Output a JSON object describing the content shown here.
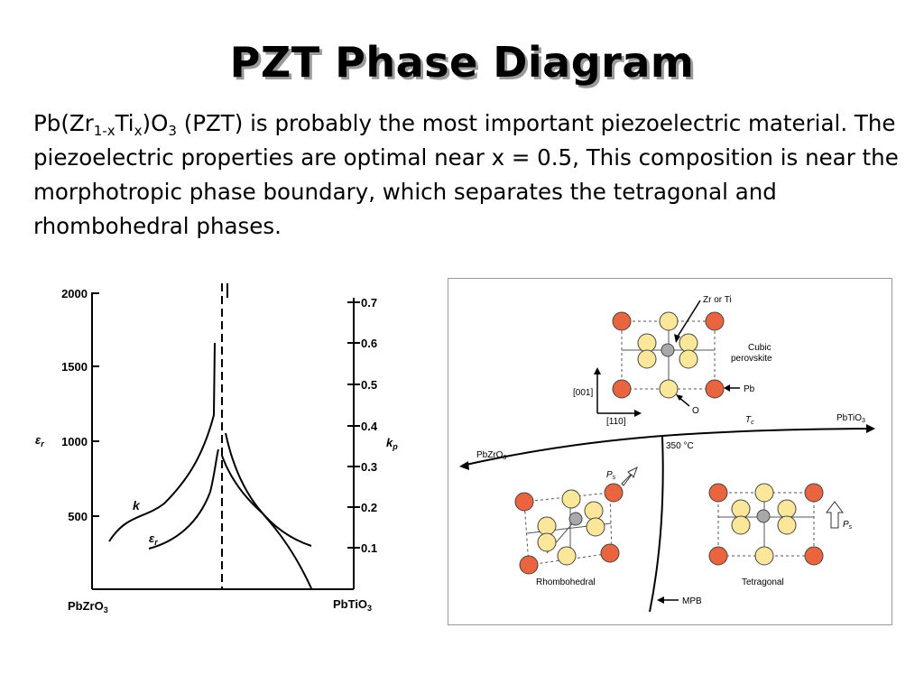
{
  "slide": {
    "title": "PZT Phase Diagram",
    "para_parts": {
      "p1": "Pb(Zr",
      "sub1": "1-x",
      "p2": "Ti",
      "sub2": "x",
      "p3": ")O",
      "sub3": "3",
      "p4": " (PZT) is probably the most important piezoelectric material.  The piezoelectric properties are optimal near x = 0.5, This composition is near the morphotropic phase boundary, which separates the tetragonal and rhombohedral phases."
    }
  },
  "left_chart": {
    "left_axis": {
      "label": "ε",
      "label_sub": "r",
      "ticks": [
        "2000",
        "1500",
        "1000",
        "500"
      ]
    },
    "right_axis": {
      "label": "k",
      "label_sub": "p",
      "ticks": [
        "0.7",
        "0.6",
        "0.5",
        "0.4",
        "0.3",
        "0.2",
        "0.1"
      ]
    },
    "x_left_label": "PbZrO",
    "x_left_sub": "3",
    "x_right_label": "PbTiO",
    "x_right_sub": "3",
    "curve_k_label": "k",
    "curve_er_label": "ε",
    "curve_er_sub": "r"
  },
  "right_diagram": {
    "atom_label": "Zr or Ti",
    "cubic_label_1": "Cubic",
    "cubic_label_2": "perovskite",
    "pb_label": "Pb",
    "o_label": "O",
    "dir_001": "[001]",
    "dir_110": "[110]",
    "tc_label": "T",
    "tc_sub": "c",
    "pbtio3": "PbTiO",
    "pbtio3_sub": "3",
    "pbzro3": "PbZrO",
    "pbzro3_sub": "3",
    "temp": "350 °C",
    "ps": "P",
    "ps_sub": "s",
    "rhombo": "Rhombohedral",
    "tetra": "Tetragonal",
    "mpb": "MPB",
    "colors": {
      "pb_atom": "#e9643f",
      "o_atom": "#fbe79a",
      "b_atom": "#a7a9ab"
    }
  }
}
